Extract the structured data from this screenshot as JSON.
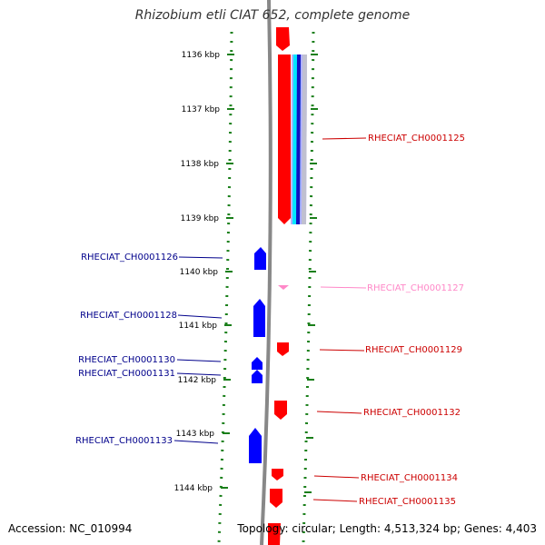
{
  "title": "Rhizobium etli CIAT 652, complete genome",
  "footer": {
    "accession": "Accession: NC_010994",
    "topology": "Topology: circular; Length: 4,513,324 bp; Genes: 4,403"
  },
  "ruler": {
    "ticks": [
      "1136 kbp",
      "1137 kbp",
      "1138 kbp",
      "1139 kbp",
      "1140 kbp",
      "1141 kbp",
      "1142 kbp",
      "1143 kbp",
      "1144 kbp"
    ]
  },
  "colors": {
    "forward_gene": "#ff0000",
    "reverse_gene": "#0000ff",
    "pseudo_gene": "#ff88c8",
    "backbone": "#888888",
    "dotted_track": "#1a7f1a"
  },
  "genes": [
    {
      "label": "RHECIAT_CH0001125",
      "strand": "+"
    },
    {
      "label": "RHECIAT_CH0001126",
      "strand": "-"
    },
    {
      "label": "RHECIAT_CH0001127",
      "strand": "+"
    },
    {
      "label": "RHECIAT_CH0001128",
      "strand": "-"
    },
    {
      "label": "RHECIAT_CH0001129",
      "strand": "+"
    },
    {
      "label": "RHECIAT_CH0001130",
      "strand": "-"
    },
    {
      "label": "RHECIAT_CH0001131",
      "strand": "-"
    },
    {
      "label": "RHECIAT_CH0001132",
      "strand": "+"
    },
    {
      "label": "RHECIAT_CH0001133",
      "strand": "-"
    },
    {
      "label": "RHECIAT_CH0001134",
      "strand": "+"
    },
    {
      "label": "RHECIAT_CH0001135",
      "strand": "+"
    }
  ]
}
